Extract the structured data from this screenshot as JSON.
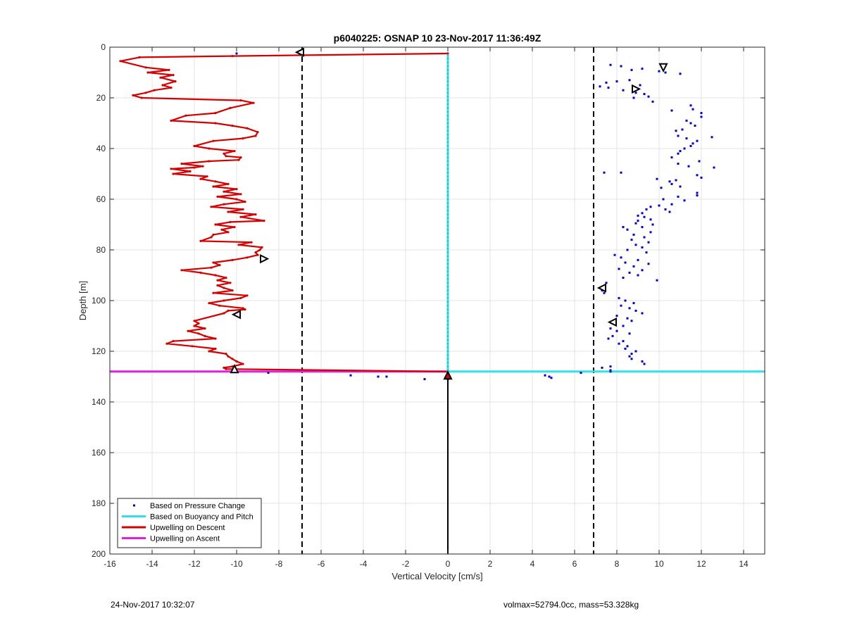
{
  "chart_data": {
    "type": "scatter",
    "title": "p6040225: OSNAP 10 23-Nov-2017 11:36:49Z",
    "xlabel": "Vertical Velocity [cm/s]",
    "ylabel": "Depth [m]",
    "xlim": [
      -16,
      15
    ],
    "ylim": [
      0,
      200
    ],
    "y_reversed": true,
    "grid": true,
    "xticks": [
      -16,
      -14,
      -12,
      -10,
      -8,
      -6,
      -4,
      -2,
      0,
      2,
      4,
      6,
      8,
      10,
      12,
      14
    ],
    "yticks": [
      0,
      20,
      40,
      60,
      80,
      100,
      120,
      140,
      160,
      180,
      200
    ],
    "legend_position": "bottom-left",
    "legend": [
      {
        "label": "Based on Pressure Change",
        "color": "#0000cc",
        "style": "dot"
      },
      {
        "label": "Based on Buoyancy and Pitch",
        "color": "#33e0e8",
        "style": "line"
      },
      {
        "label": "Upwelling on Descent",
        "color": "#d40000",
        "style": "line"
      },
      {
        "label": "Upwelling on Ascent",
        "color": "#e020e0",
        "style": "line"
      }
    ],
    "series": [
      {
        "name": "Based on Pressure Change",
        "color": "#0000cc",
        "points": [
          [
            -10.0,
            2.5
          ],
          [
            -7.0,
            2.6
          ],
          [
            7.7,
            7
          ],
          [
            8.2,
            7.5
          ],
          [
            8.7,
            9
          ],
          [
            9.2,
            8.5
          ],
          [
            10.0,
            9.5
          ],
          [
            10.3,
            10
          ],
          [
            11.0,
            10.5
          ],
          [
            7.5,
            14
          ],
          [
            8.0,
            13.5
          ],
          [
            8.6,
            13
          ],
          [
            9.1,
            15
          ],
          [
            7.2,
            15.5
          ],
          [
            7.6,
            16
          ],
          [
            8.3,
            17
          ],
          [
            8.9,
            18
          ],
          [
            9.3,
            18.5
          ],
          [
            9.5,
            19.5
          ],
          [
            9.7,
            21.5
          ],
          [
            8.8,
            20
          ],
          [
            10.6,
            25
          ],
          [
            11.5,
            23
          ],
          [
            11.6,
            24.5
          ],
          [
            12.0,
            26
          ],
          [
            12.0,
            27.5
          ],
          [
            11.3,
            29
          ],
          [
            11.5,
            30
          ],
          [
            11.7,
            31
          ],
          [
            11.1,
            32.5
          ],
          [
            10.8,
            33
          ],
          [
            10.9,
            35
          ],
          [
            11.3,
            36
          ],
          [
            12.5,
            35.5
          ],
          [
            11.8,
            37
          ],
          [
            11.6,
            38
          ],
          [
            11.5,
            39
          ],
          [
            11.2,
            40
          ],
          [
            11.0,
            41
          ],
          [
            10.9,
            42
          ],
          [
            10.6,
            43.5
          ],
          [
            11.9,
            45
          ],
          [
            10.9,
            46
          ],
          [
            11.4,
            47
          ],
          [
            12.6,
            47.5
          ],
          [
            7.4,
            49.5
          ],
          [
            8.2,
            49.5
          ],
          [
            11.8,
            50.5
          ],
          [
            12.0,
            51.5
          ],
          [
            9.9,
            52
          ],
          [
            10.8,
            52.5
          ],
          [
            10.5,
            53
          ],
          [
            10.6,
            54
          ],
          [
            11.0,
            55
          ],
          [
            10.1,
            55.5
          ],
          [
            11.8,
            57.5
          ],
          [
            11.8,
            58.5
          ],
          [
            10.9,
            59
          ],
          [
            10.2,
            60
          ],
          [
            11.2,
            60.5
          ],
          [
            10.6,
            62
          ],
          [
            10.0,
            62.5
          ],
          [
            9.6,
            63
          ],
          [
            9.4,
            64
          ],
          [
            10.3,
            64
          ],
          [
            10.5,
            65
          ],
          [
            9.2,
            65.5
          ],
          [
            9.0,
            66.5
          ],
          [
            9.3,
            67
          ],
          [
            9.6,
            68
          ],
          [
            9.0,
            68.5
          ],
          [
            8.9,
            69.5
          ],
          [
            9.7,
            70
          ],
          [
            8.3,
            71
          ],
          [
            9.2,
            71
          ],
          [
            8.5,
            72
          ],
          [
            9.6,
            73
          ],
          [
            8.8,
            74
          ],
          [
            9.3,
            75
          ],
          [
            8.7,
            76
          ],
          [
            9.5,
            77
          ],
          [
            8.9,
            78
          ],
          [
            9.2,
            79
          ],
          [
            8.5,
            80
          ],
          [
            9.4,
            81
          ],
          [
            7.9,
            82
          ],
          [
            8.2,
            83
          ],
          [
            9.0,
            84
          ],
          [
            8.4,
            85
          ],
          [
            9.5,
            85.5
          ],
          [
            8.8,
            86.5
          ],
          [
            8.1,
            87.5
          ],
          [
            9.2,
            88
          ],
          [
            8.6,
            89
          ],
          [
            9.0,
            90
          ],
          [
            8.3,
            91
          ],
          [
            9.9,
            92
          ],
          [
            7.5,
            93
          ],
          [
            7.4,
            95
          ],
          [
            7.3,
            96
          ],
          [
            7.4,
            97
          ],
          [
            8.1,
            99
          ],
          [
            8.4,
            100
          ],
          [
            8.8,
            101
          ],
          [
            8.2,
            102
          ],
          [
            8.6,
            103
          ],
          [
            8.9,
            104
          ],
          [
            9.2,
            105
          ],
          [
            8.0,
            106
          ],
          [
            8.5,
            107
          ],
          [
            8.7,
            108
          ],
          [
            7.8,
            109
          ],
          [
            8.3,
            110
          ],
          [
            7.7,
            111
          ],
          [
            8.0,
            112
          ],
          [
            8.6,
            113
          ],
          [
            7.8,
            114
          ],
          [
            7.6,
            115
          ],
          [
            8.3,
            116
          ],
          [
            8.1,
            117
          ],
          [
            8.5,
            118
          ],
          [
            8.4,
            119
          ],
          [
            8.9,
            120
          ],
          [
            8.7,
            121
          ],
          [
            8.6,
            122
          ],
          [
            8.7,
            123
          ],
          [
            9.2,
            124
          ],
          [
            9.3,
            125
          ],
          [
            7.7,
            126
          ],
          [
            7.3,
            126.5
          ],
          [
            7.7,
            127.5
          ],
          [
            7.7,
            128
          ],
          [
            6.3,
            128.5
          ],
          [
            4.6,
            129.5
          ],
          [
            4.8,
            130
          ],
          [
            4.9,
            130.5
          ],
          [
            -8.5,
            128.5
          ],
          [
            -4.6,
            129.5
          ],
          [
            -3.3,
            130
          ],
          [
            -2.9,
            130
          ],
          [
            -1.1,
            131
          ],
          [
            0.0,
            131
          ]
        ]
      },
      {
        "name": "Based on Buoyancy and Pitch",
        "color": "#33e0e8",
        "points": [
          [
            0,
            3
          ],
          [
            0,
            128
          ],
          [
            15,
            128
          ]
        ]
      },
      {
        "name": "Upwelling on Descent",
        "color": "#d40000",
        "points": [
          [
            0,
            2.5
          ],
          [
            -10.2,
            3.5
          ],
          [
            -14.6,
            4
          ],
          [
            -15.5,
            5.5
          ],
          [
            -14.3,
            8
          ],
          [
            -13.2,
            9
          ],
          [
            -14.2,
            10
          ],
          [
            -13.0,
            11
          ],
          [
            -13.6,
            12
          ],
          [
            -12.9,
            13.5
          ],
          [
            -13.5,
            15
          ],
          [
            -13.1,
            16
          ],
          [
            -13.9,
            17
          ],
          [
            -14.3,
            18
          ],
          [
            -14.9,
            19
          ],
          [
            -14.5,
            20
          ],
          [
            -9.8,
            21
          ],
          [
            -9.2,
            22
          ],
          [
            -10.3,
            24
          ],
          [
            -11.0,
            26
          ],
          [
            -12.4,
            27
          ],
          [
            -13.1,
            29
          ],
          [
            -11.0,
            30
          ],
          [
            -10.2,
            31
          ],
          [
            -9.5,
            32
          ],
          [
            -9.0,
            33.5
          ],
          [
            -9.1,
            35
          ],
          [
            -9.7,
            36
          ],
          [
            -11.1,
            37
          ],
          [
            -12.0,
            39
          ],
          [
            -11.3,
            40
          ],
          [
            -10.1,
            41
          ],
          [
            -10.6,
            42
          ],
          [
            -10.5,
            43
          ],
          [
            -9.8,
            43.5
          ],
          [
            -9.9,
            44.5
          ],
          [
            -11.3,
            45
          ],
          [
            -12.6,
            46
          ],
          [
            -11.6,
            47
          ],
          [
            -12.0,
            47.5
          ],
          [
            -13.1,
            48
          ],
          [
            -12.2,
            49
          ],
          [
            -13.0,
            50
          ],
          [
            -11.4,
            51
          ],
          [
            -11.7,
            52
          ],
          [
            -11.0,
            53
          ],
          [
            -10.4,
            54
          ],
          [
            -11.1,
            55
          ],
          [
            -10.0,
            56
          ],
          [
            -10.6,
            57
          ],
          [
            -9.8,
            58
          ],
          [
            -10.9,
            59
          ],
          [
            -10.0,
            60
          ],
          [
            -9.6,
            61
          ],
          [
            -10.6,
            62
          ],
          [
            -11.2,
            63
          ],
          [
            -9.7,
            64
          ],
          [
            -10.4,
            65
          ],
          [
            -9.1,
            66
          ],
          [
            -9.8,
            67
          ],
          [
            -8.7,
            68.5
          ],
          [
            -10.3,
            69
          ],
          [
            -11.0,
            70
          ],
          [
            -10.1,
            71
          ],
          [
            -10.7,
            72
          ],
          [
            -10.4,
            73
          ],
          [
            -11.1,
            74
          ],
          [
            -11.2,
            75
          ],
          [
            -11.7,
            76.5
          ],
          [
            -9.3,
            77
          ],
          [
            -9.9,
            78
          ],
          [
            -8.8,
            79
          ],
          [
            -8.9,
            80
          ],
          [
            -9.1,
            81
          ],
          [
            -9.0,
            82
          ],
          [
            -9.5,
            83
          ],
          [
            -10.2,
            84
          ],
          [
            -11.1,
            85
          ],
          [
            -10.8,
            86
          ],
          [
            -11.2,
            87
          ],
          [
            -12.6,
            88
          ],
          [
            -11.7,
            89
          ],
          [
            -11.0,
            90
          ],
          [
            -10.5,
            91
          ],
          [
            -10.9,
            92
          ],
          [
            -10.3,
            93
          ],
          [
            -10.9,
            94
          ],
          [
            -10.6,
            95
          ],
          [
            -10.2,
            96
          ],
          [
            -11.1,
            97
          ],
          [
            -9.5,
            98
          ],
          [
            -9.8,
            99
          ],
          [
            -10.6,
            100
          ],
          [
            -11.3,
            101
          ],
          [
            -10.8,
            102
          ],
          [
            -9.7,
            103
          ],
          [
            -9.6,
            103.5
          ],
          [
            -10.4,
            104
          ],
          [
            -10.6,
            105
          ],
          [
            -12.0,
            108
          ],
          [
            -11.8,
            109
          ],
          [
            -12.0,
            110
          ],
          [
            -11.5,
            111
          ],
          [
            -12.3,
            112
          ],
          [
            -11.8,
            113
          ],
          [
            -11.5,
            114
          ],
          [
            -11.0,
            115
          ],
          [
            -13.0,
            116
          ],
          [
            -13.3,
            117
          ],
          [
            -12.1,
            118
          ],
          [
            -11.0,
            119
          ],
          [
            -11.3,
            120
          ],
          [
            -10.5,
            121
          ],
          [
            -10.4,
            122
          ],
          [
            -10.2,
            123
          ],
          [
            -10.0,
            124
          ],
          [
            -9.7,
            125
          ],
          [
            -10.2,
            126
          ],
          [
            -10.6,
            126.5
          ],
          [
            -10.5,
            127
          ],
          [
            0,
            128
          ]
        ]
      },
      {
        "name": "Upwelling on Ascent",
        "color": "#e020e0",
        "points": [
          [
            -16,
            128
          ],
          [
            0,
            128
          ]
        ]
      }
    ],
    "reference_lines": [
      {
        "orientation": "vertical",
        "x": -6.9,
        "style": "dashed",
        "color": "#000000"
      },
      {
        "orientation": "vertical",
        "x": 6.9,
        "style": "dashed",
        "color": "#000000"
      },
      {
        "orientation": "vertical",
        "x": 0,
        "y_range": [
          130,
          200
        ],
        "style": "solid",
        "color": "#000000"
      }
    ],
    "markers": [
      {
        "x": -7.0,
        "y": 2,
        "shape": "triangle-left",
        "color": "#000000"
      },
      {
        "x": 10.2,
        "y": 8,
        "shape": "triangle-down",
        "color": "#000000"
      },
      {
        "x": 8.9,
        "y": 16.5,
        "shape": "triangle-right",
        "color": "#000000"
      },
      {
        "x": -8.7,
        "y": 83.5,
        "shape": "triangle-right",
        "color": "#000000"
      },
      {
        "x": 7.3,
        "y": 95,
        "shape": "triangle-left",
        "color": "#000000"
      },
      {
        "x": -10.0,
        "y": 105.5,
        "shape": "triangle-left",
        "color": "#000000"
      },
      {
        "x": 7.8,
        "y": 108.5,
        "shape": "triangle-left",
        "color": "#000000"
      },
      {
        "x": -10.1,
        "y": 127,
        "shape": "triangle-up",
        "color": "#000000"
      },
      {
        "x": 0,
        "y": 129.5,
        "shape": "triangle-up",
        "color": "#d40000"
      }
    ]
  },
  "footer": {
    "left_text": "24-Nov-2017 10:32:07",
    "right_text": "volmax=52794.0cc, mass=53.328kg"
  }
}
